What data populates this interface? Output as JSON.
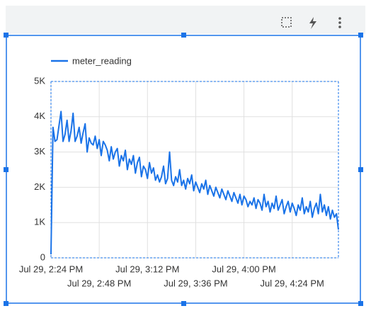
{
  "chart_data": {
    "type": "line",
    "x": [
      "Jul 29, 2:24 PM",
      "Jul 29, 2:25 PM",
      "Jul 29, 2:26 PM",
      "Jul 29, 2:27 PM",
      "Jul 29, 2:28 PM",
      "Jul 29, 2:29 PM",
      "Jul 29, 2:30 PM",
      "Jul 29, 2:31 PM",
      "Jul 29, 2:32 PM",
      "Jul 29, 2:33 PM",
      "Jul 29, 2:34 PM",
      "Jul 29, 2:35 PM",
      "Jul 29, 2:36 PM",
      "Jul 29, 2:37 PM",
      "Jul 29, 2:38 PM",
      "Jul 29, 2:39 PM",
      "Jul 29, 2:40 PM",
      "Jul 29, 2:41 PM",
      "Jul 29, 2:42 PM",
      "Jul 29, 2:43 PM",
      "Jul 29, 2:44 PM",
      "Jul 29, 2:45 PM",
      "Jul 29, 2:46 PM",
      "Jul 29, 2:47 PM",
      "Jul 29, 2:48 PM",
      "Jul 29, 2:49 PM",
      "Jul 29, 2:50 PM",
      "Jul 29, 2:51 PM",
      "Jul 29, 2:52 PM",
      "Jul 29, 2:53 PM",
      "Jul 29, 2:54 PM",
      "Jul 29, 2:55 PM",
      "Jul 29, 2:56 PM",
      "Jul 29, 2:57 PM",
      "Jul 29, 2:58 PM",
      "Jul 29, 2:59 PM",
      "Jul 29, 3:00 PM",
      "Jul 29, 3:01 PM",
      "Jul 29, 3:02 PM",
      "Jul 29, 3:03 PM",
      "Jul 29, 3:04 PM",
      "Jul 29, 3:05 PM",
      "Jul 29, 3:06 PM",
      "Jul 29, 3:07 PM",
      "Jul 29, 3:08 PM",
      "Jul 29, 3:09 PM",
      "Jul 29, 3:10 PM",
      "Jul 29, 3:11 PM",
      "Jul 29, 3:12 PM",
      "Jul 29, 3:13 PM",
      "Jul 29, 3:14 PM",
      "Jul 29, 3:15 PM",
      "Jul 29, 3:16 PM",
      "Jul 29, 3:17 PM",
      "Jul 29, 3:18 PM",
      "Jul 29, 3:19 PM",
      "Jul 29, 3:20 PM",
      "Jul 29, 3:21 PM",
      "Jul 29, 3:22 PM",
      "Jul 29, 3:23 PM",
      "Jul 29, 3:24 PM",
      "Jul 29, 3:25 PM",
      "Jul 29, 3:26 PM",
      "Jul 29, 3:27 PM",
      "Jul 29, 3:28 PM",
      "Jul 29, 3:29 PM",
      "Jul 29, 3:30 PM",
      "Jul 29, 3:31 PM",
      "Jul 29, 3:32 PM",
      "Jul 29, 3:33 PM",
      "Jul 29, 3:34 PM",
      "Jul 29, 3:35 PM",
      "Jul 29, 3:36 PM",
      "Jul 29, 3:37 PM",
      "Jul 29, 3:38 PM",
      "Jul 29, 3:39 PM",
      "Jul 29, 3:40 PM",
      "Jul 29, 3:41 PM",
      "Jul 29, 3:42 PM",
      "Jul 29, 3:43 PM",
      "Jul 29, 3:44 PM",
      "Jul 29, 3:45 PM",
      "Jul 29, 3:46 PM",
      "Jul 29, 3:47 PM",
      "Jul 29, 3:48 PM",
      "Jul 29, 3:49 PM",
      "Jul 29, 3:50 PM",
      "Jul 29, 3:51 PM",
      "Jul 29, 3:52 PM",
      "Jul 29, 3:53 PM",
      "Jul 29, 3:54 PM",
      "Jul 29, 3:55 PM",
      "Jul 29, 3:56 PM",
      "Jul 29, 3:57 PM",
      "Jul 29, 3:58 PM",
      "Jul 29, 3:59 PM",
      "Jul 29, 4:00 PM",
      "Jul 29, 4:01 PM",
      "Jul 29, 4:02 PM",
      "Jul 29, 4:03 PM",
      "Jul 29, 4:04 PM",
      "Jul 29, 4:05 PM",
      "Jul 29, 4:06 PM",
      "Jul 29, 4:07 PM",
      "Jul 29, 4:08 PM",
      "Jul 29, 4:09 PM",
      "Jul 29, 4:10 PM",
      "Jul 29, 4:11 PM",
      "Jul 29, 4:12 PM",
      "Jul 29, 4:13 PM",
      "Jul 29, 4:14 PM",
      "Jul 29, 4:15 PM",
      "Jul 29, 4:16 PM",
      "Jul 29, 4:17 PM",
      "Jul 29, 4:18 PM",
      "Jul 29, 4:19 PM",
      "Jul 29, 4:20 PM",
      "Jul 29, 4:21 PM",
      "Jul 29, 4:22 PM",
      "Jul 29, 4:23 PM",
      "Jul 29, 4:24 PM",
      "Jul 29, 4:25 PM",
      "Jul 29, 4:26 PM",
      "Jul 29, 4:27 PM",
      "Jul 29, 4:28 PM",
      "Jul 29, 4:29 PM",
      "Jul 29, 4:30 PM",
      "Jul 29, 4:31 PM",
      "Jul 29, 4:32 PM",
      "Jul 29, 4:33 PM",
      "Jul 29, 4:34 PM",
      "Jul 29, 4:35 PM",
      "Jul 29, 4:36 PM",
      "Jul 29, 4:37 PM",
      "Jul 29, 4:38 PM",
      "Jul 29, 4:39 PM",
      "Jul 29, 4:40 PM",
      "Jul 29, 4:41 PM",
      "Jul 29, 4:42 PM",
      "Jul 29, 4:43 PM",
      "Jul 29, 4:44 PM",
      "Jul 29, 4:45 PM",
      "Jul 29, 4:46 PM",
      "Jul 29, 4:47 PM"
    ],
    "series": [
      {
        "name": "meter_reading",
        "color": "#1a73e8",
        "values": [
          100,
          3700,
          3300,
          3350,
          3750,
          4150,
          3300,
          3500,
          3900,
          3300,
          3600,
          4100,
          3300,
          3450,
          3700,
          3250,
          3550,
          3800,
          3000,
          3400,
          3250,
          3200,
          3450,
          3100,
          3350,
          2900,
          3300,
          3200,
          3050,
          2750,
          3150,
          2800,
          3000,
          3100,
          2600,
          2900,
          2750,
          3050,
          2500,
          2800,
          2650,
          2900,
          2400,
          2700,
          2850,
          2300,
          2600,
          2500,
          2250,
          2700,
          2400,
          2550,
          2200,
          2350,
          2150,
          2300,
          2600,
          2100,
          2250,
          3000,
          2200,
          2050,
          2300,
          2150,
          2500,
          2050,
          2200,
          1950,
          2250,
          2100,
          2350,
          1900,
          2150,
          2000,
          1850,
          2100,
          1950,
          2200,
          1800,
          2050,
          1900,
          1750,
          2000,
          1850,
          1700,
          1950,
          1800,
          1650,
          1900,
          1750,
          1600,
          1850,
          1700,
          1550,
          1800,
          1500,
          1750,
          1650,
          1450,
          1600,
          1500,
          1700,
          1400,
          1650,
          1550,
          1350,
          1800,
          1450,
          1600,
          1300,
          1550,
          1400,
          1750,
          1350,
          1500,
          1650,
          1250,
          1450,
          1600,
          1300,
          1550,
          1400,
          1200,
          1500,
          1350,
          1700,
          1250,
          1450,
          1300,
          1600,
          1150,
          1400,
          1550,
          1250,
          1800,
          1300,
          1500,
          1200,
          1450,
          1100,
          1350,
          1150,
          1250,
          800
        ]
      }
    ],
    "xlim": [
      "Jul 29, 2:24 PM",
      "Jul 29, 4:47 PM"
    ],
    "xticks": [
      "Jul 29, 2:24 PM",
      "Jul 29, 2:48 PM",
      "Jul 29, 3:12 PM",
      "Jul 29, 3:36 PM",
      "Jul 29, 4:00 PM",
      "Jul 29, 4:24 PM"
    ],
    "ylim": [
      0,
      5000
    ],
    "yticks": [
      0,
      {
        "value": 1000,
        "label": "1K"
      },
      {
        "value": 2000,
        "label": "2K"
      },
      {
        "value": 3000,
        "label": "3K"
      },
      {
        "value": 4000,
        "label": "4K"
      },
      {
        "value": 5000,
        "label": "5K"
      }
    ],
    "grid": true,
    "legend": "top-left"
  }
}
